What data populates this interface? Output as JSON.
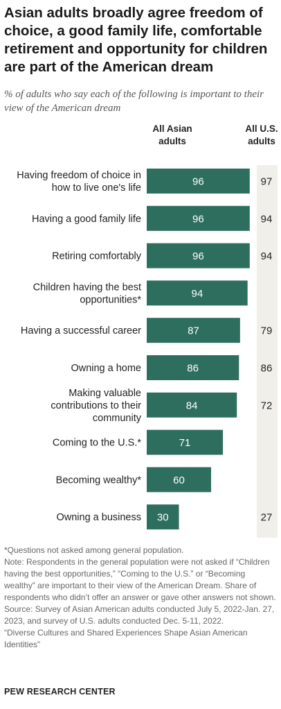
{
  "colors": {
    "bar": "#2e6e5e",
    "us_column_bg": "#f1efe9"
  },
  "chart_data": {
    "type": "bar",
    "orientation": "horizontal",
    "title": "Asian adults broadly agree freedom of choice, a good family life, comfortable retirement and opportunity for children are part of the American dream",
    "subtitle": "% of adults who say each of the following is important to their view of the American dream",
    "categories": [
      "Having freedom of choice in how to live one's life",
      "Having a good family life",
      "Retiring comfortably",
      "Children having the best opportunities*",
      "Having a successful career",
      "Owning a home",
      "Making valuable contributions to their community",
      "Coming to the U.S.*",
      "Becoming wealthy*",
      "Owning a business"
    ],
    "category_lines": [
      [
        "Having freedom of choice in",
        "how to live one's life"
      ],
      [
        "Having a good family life"
      ],
      [
        "Retiring comfortably"
      ],
      [
        "Children having the best",
        "opportunities*"
      ],
      [
        "Having a successful career"
      ],
      [
        "Owning a home"
      ],
      [
        "Making valuable",
        "contributions to their",
        "community"
      ],
      [
        "Coming to the U.S.*"
      ],
      [
        "Becoming wealthy*"
      ],
      [
        "Owning a business"
      ]
    ],
    "series": [
      {
        "name": "All Asian adults",
        "values": [
          96,
          96,
          96,
          94,
          87,
          86,
          84,
          71,
          60,
          30
        ]
      },
      {
        "name": "All U.S. adults",
        "values": [
          97,
          94,
          94,
          null,
          79,
          86,
          72,
          null,
          null,
          27
        ]
      }
    ],
    "column_headers": [
      [
        "All Asian",
        "adults"
      ],
      [
        "All U.S.",
        "adults"
      ]
    ],
    "xlim": [
      0,
      100
    ]
  },
  "notes": [
    "*Questions not asked among general population.",
    "Note: Respondents in the general population were not asked if “Children having the best opportunities,” “Coming to the U.S.” or “Becoming wealthy” are important to their view of the American Dream. Share of respondents who didn’t offer an answer or gave other answers not shown.",
    "Source: Survey of Asian American adults conducted July 5, 2022-Jan. 27, 2023, and survey of U.S. adults conducted Dec. 5-11, 2022.",
    "“Diverse Cultures and Shared Experiences Shape Asian American Identities”"
  ],
  "brand": "PEW RESEARCH CENTER"
}
